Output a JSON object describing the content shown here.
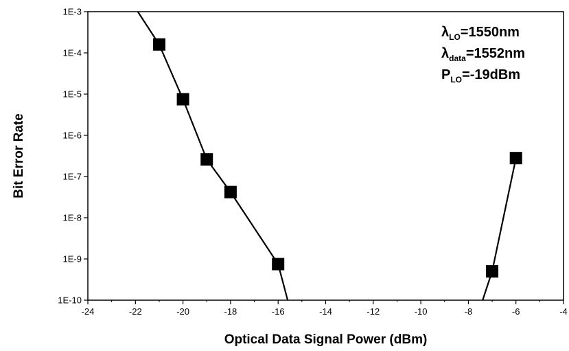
{
  "chart_data": {
    "type": "line",
    "xlabel": "Optical Data Signal Power (dBm)",
    "ylabel": "Bit Error Rate",
    "xlim": [
      -24,
      -4
    ],
    "x_ticks": [
      -24,
      -22,
      -20,
      -18,
      -16,
      -14,
      -12,
      -10,
      -8,
      -6,
      -4
    ],
    "y_scale": "log",
    "ylim": [
      1e-10,
      0.001
    ],
    "y_ticks": [
      {
        "value": 0.001,
        "label": "1E-3"
      },
      {
        "value": 0.0001,
        "label": "1E-4"
      },
      {
        "value": 1e-05,
        "label": "1E-5"
      },
      {
        "value": 1e-06,
        "label": "1E-6"
      },
      {
        "value": 1e-07,
        "label": "1E-7"
      },
      {
        "value": 1e-08,
        "label": "1E-8"
      },
      {
        "value": 1e-09,
        "label": "1E-9"
      },
      {
        "value": 1e-10,
        "label": "1E-10"
      }
    ],
    "series": [
      {
        "points": [
          {
            "x": -21,
            "y": 0.00016
          },
          {
            "x": -20,
            "y": 7.5e-06
          },
          {
            "x": -19,
            "y": 2.6e-07
          },
          {
            "x": -18,
            "y": 4.2e-08
          },
          {
            "x": -16,
            "y": 7.5e-10
          }
        ],
        "fit_line": [
          {
            "x": -21.9,
            "y": 0.001
          },
          {
            "x": -21,
            "y": 0.00016
          },
          {
            "x": -20,
            "y": 7.5e-06
          },
          {
            "x": -19,
            "y": 2.6e-07
          },
          {
            "x": -18,
            "y": 4.2e-08
          },
          {
            "x": -16,
            "y": 7.5e-10
          },
          {
            "x": -15.6,
            "y": 1e-10
          }
        ]
      },
      {
        "points": [
          {
            "x": -7,
            "y": 5e-10
          },
          {
            "x": -6,
            "y": 2.8e-07
          }
        ],
        "fit_line": [
          {
            "x": -7.4,
            "y": 1e-10
          },
          {
            "x": -7,
            "y": 5e-10
          },
          {
            "x": -6,
            "y": 2.8e-07
          }
        ]
      }
    ],
    "annotations": [
      {
        "main": "λ",
        "sub": "LO",
        "rest": "=1550nm"
      },
      {
        "main": "λ",
        "sub": "data",
        "rest": "=1552nm"
      },
      {
        "main": "P",
        "sub": "LO",
        "rest": "=-19dBm"
      }
    ],
    "grid": false,
    "marker": "square",
    "color": "#000000"
  }
}
